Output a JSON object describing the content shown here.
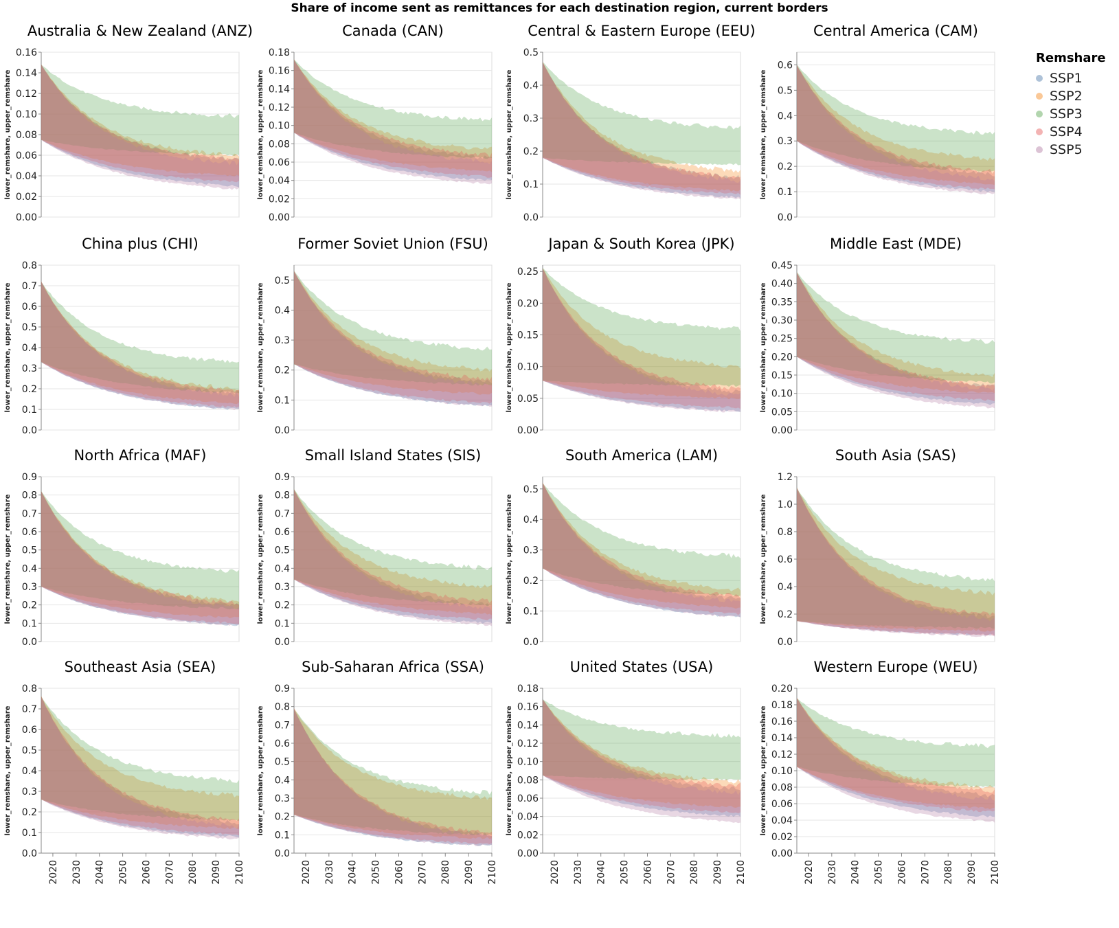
{
  "title": "Share of income sent as remittances for each destination region, current borders",
  "legend": {
    "title": "Remshare",
    "items": [
      {
        "label": "SSP1",
        "color": "#4c78a8"
      },
      {
        "label": "SSP2",
        "color": "#f58518"
      },
      {
        "label": "SSP3",
        "color": "#54a24b"
      },
      {
        "label": "SSP4",
        "color": "#e45756"
      },
      {
        "label": "SSP5",
        "color": "#b279a2"
      }
    ]
  },
  "chart_data": {
    "type": "area",
    "subtype": "small-multiples band (lower_remshare to upper_remshare) per scenario",
    "ylabel": "lower_remshare, upper_remshare",
    "x_range": [
      2015,
      2100
    ],
    "x_ticks": [
      "2020",
      "2030",
      "2040",
      "2050",
      "2060",
      "2070",
      "2080",
      "2090",
      "2100"
    ],
    "series_names": [
      "SSP1",
      "SSP2",
      "SSP3",
      "SSP4",
      "SSP5"
    ],
    "panels": [
      {
        "title": "Australia & New Zealand (ANZ)",
        "ymax": 0.16,
        "ticks": [
          "0.00",
          "0.02",
          "0.04",
          "0.06",
          "0.08",
          "0.10",
          "0.12",
          "0.14",
          "0.16"
        ],
        "start_upper": 0.148,
        "start_lower": 0.075,
        "end_upper": {
          "SSP1": 0.056,
          "SSP2": 0.06,
          "SSP3": 0.098,
          "SSP4": 0.056,
          "SSP5": 0.052
        },
        "end_lower": {
          "SSP1": 0.03,
          "SSP2": 0.04,
          "SSP3": 0.06,
          "SSP4": 0.034,
          "SSP5": 0.027
        }
      },
      {
        "title": "Canada (CAN)",
        "ymax": 0.18,
        "ticks": [
          "0.00",
          "0.02",
          "0.04",
          "0.06",
          "0.08",
          "0.10",
          "0.12",
          "0.14",
          "0.16",
          "0.18"
        ],
        "start_upper": 0.172,
        "start_lower": 0.092,
        "end_upper": {
          "SSP1": 0.065,
          "SSP2": 0.074,
          "SSP3": 0.106,
          "SSP4": 0.068,
          "SSP5": 0.06
        },
        "end_lower": {
          "SSP1": 0.04,
          "SSP2": 0.05,
          "SSP3": 0.064,
          "SSP4": 0.044,
          "SSP5": 0.036
        }
      },
      {
        "title": "Central & Eastern Europe (EEU)",
        "ymax": 0.5,
        "ticks": [
          "0.0",
          "0.1",
          "0.2",
          "0.3",
          "0.4",
          "0.5"
        ],
        "start_upper": 0.47,
        "start_lower": 0.18,
        "end_upper": {
          "SSP1": 0.12,
          "SSP2": 0.14,
          "SSP3": 0.27,
          "SSP4": 0.12,
          "SSP5": 0.11
        },
        "end_lower": {
          "SSP1": 0.06,
          "SSP2": 0.08,
          "SSP3": 0.16,
          "SSP4": 0.07,
          "SSP5": 0.055
        }
      },
      {
        "title": "Central America (CAM)",
        "ymax": 0.65,
        "ticks": [
          "0.0",
          "0.1",
          "0.2",
          "0.3",
          "0.4",
          "0.5",
          "0.6"
        ],
        "start_upper": 0.6,
        "start_lower": 0.3,
        "end_upper": {
          "SSP1": 0.17,
          "SSP2": 0.23,
          "SSP3": 0.33,
          "SSP4": 0.18,
          "SSP5": 0.15
        },
        "end_lower": {
          "SSP1": 0.1,
          "SSP2": 0.13,
          "SSP3": 0.18,
          "SSP4": 0.11,
          "SSP5": 0.09
        }
      },
      {
        "title": "China plus (CHI)",
        "ymax": 0.8,
        "ticks": [
          "0.0",
          "0.1",
          "0.2",
          "0.3",
          "0.4",
          "0.5",
          "0.6",
          "0.7",
          "0.8"
        ],
        "start_upper": 0.72,
        "start_lower": 0.33,
        "end_upper": {
          "SSP1": 0.18,
          "SSP2": 0.2,
          "SSP3": 0.33,
          "SSP4": 0.19,
          "SSP5": 0.17
        },
        "end_lower": {
          "SSP1": 0.1,
          "SSP2": 0.13,
          "SSP3": 0.18,
          "SSP4": 0.11,
          "SSP5": 0.1
        }
      },
      {
        "title": "Former Soviet Union (FSU)",
        "ymax": 0.55,
        "ticks": [
          "0.0",
          "0.1",
          "0.2",
          "0.3",
          "0.4",
          "0.5"
        ],
        "start_upper": 0.53,
        "start_lower": 0.22,
        "end_upper": {
          "SSP1": 0.16,
          "SSP2": 0.2,
          "SSP3": 0.27,
          "SSP4": 0.17,
          "SSP5": 0.15
        },
        "end_lower": {
          "SSP1": 0.08,
          "SSP2": 0.12,
          "SSP3": 0.15,
          "SSP4": 0.09,
          "SSP5": 0.08
        }
      },
      {
        "title": "Japan & South Korea (JPK)",
        "ymax": 0.26,
        "ticks": [
          "0.00",
          "0.05",
          "0.10",
          "0.15",
          "0.20",
          "0.25"
        ],
        "start_upper": 0.255,
        "start_lower": 0.078,
        "end_upper": {
          "SSP1": 0.06,
          "SSP2": 0.1,
          "SSP3": 0.16,
          "SSP4": 0.065,
          "SSP5": 0.055
        },
        "end_lower": {
          "SSP1": 0.03,
          "SSP2": 0.05,
          "SSP3": 0.07,
          "SSP4": 0.035,
          "SSP5": 0.028
        }
      },
      {
        "title": "Middle East (MDE)",
        "ymax": 0.45,
        "ticks": [
          "0.00",
          "0.05",
          "0.10",
          "0.15",
          "0.20",
          "0.25",
          "0.30",
          "0.35",
          "0.40",
          "0.45"
        ],
        "start_upper": 0.43,
        "start_lower": 0.2,
        "end_upper": {
          "SSP1": 0.12,
          "SSP2": 0.15,
          "SSP3": 0.24,
          "SSP4": 0.12,
          "SSP5": 0.11
        },
        "end_lower": {
          "SSP1": 0.07,
          "SSP2": 0.1,
          "SSP3": 0.13,
          "SSP4": 0.08,
          "SSP5": 0.06
        }
      },
      {
        "title": "North Africa (MAF)",
        "ymax": 0.9,
        "ticks": [
          "0.0",
          "0.1",
          "0.2",
          "0.3",
          "0.4",
          "0.5",
          "0.6",
          "0.7",
          "0.8",
          "0.9"
        ],
        "start_upper": 0.82,
        "start_lower": 0.3,
        "end_upper": {
          "SSP1": 0.2,
          "SSP2": 0.22,
          "SSP3": 0.38,
          "SSP4": 0.21,
          "SSP5": 0.19
        },
        "end_lower": {
          "SSP1": 0.09,
          "SSP2": 0.13,
          "SSP3": 0.18,
          "SSP4": 0.1,
          "SSP5": 0.09
        }
      },
      {
        "title": "Small Island States (SIS)",
        "ymax": 0.9,
        "ticks": [
          "0.0",
          "0.1",
          "0.2",
          "0.3",
          "0.4",
          "0.5",
          "0.6",
          "0.7",
          "0.8",
          "0.9"
        ],
        "start_upper": 0.83,
        "start_lower": 0.34,
        "end_upper": {
          "SSP1": 0.2,
          "SSP2": 0.3,
          "SSP3": 0.4,
          "SSP4": 0.22,
          "SSP5": 0.18
        },
        "end_lower": {
          "SSP1": 0.1,
          "SSP2": 0.15,
          "SSP3": 0.2,
          "SSP4": 0.12,
          "SSP5": 0.09
        }
      },
      {
        "title": "South America (LAM)",
        "ymax": 0.54,
        "ticks": [
          "0.0",
          "0.1",
          "0.2",
          "0.3",
          "0.4",
          "0.5"
        ],
        "start_upper": 0.52,
        "start_lower": 0.24,
        "end_upper": {
          "SSP1": 0.14,
          "SSP2": 0.17,
          "SSP3": 0.28,
          "SSP4": 0.15,
          "SSP5": 0.13
        },
        "end_lower": {
          "SSP1": 0.08,
          "SSP2": 0.11,
          "SSP3": 0.15,
          "SSP4": 0.09,
          "SSP5": 0.08
        }
      },
      {
        "title": "South Asia (SAS)",
        "ymax": 1.2,
        "ticks": [
          "0.0",
          "0.2",
          "0.4",
          "0.6",
          "0.8",
          "1.0",
          "1.2"
        ],
        "start_upper": 1.12,
        "start_lower": 0.15,
        "end_upper": {
          "SSP1": 0.18,
          "SSP2": 0.35,
          "SSP3": 0.45,
          "SSP4": 0.2,
          "SSP5": 0.16
        },
        "end_lower": {
          "SSP1": 0.05,
          "SSP2": 0.08,
          "SSP3": 0.1,
          "SSP4": 0.05,
          "SSP5": 0.04
        }
      },
      {
        "title": "Southeast Asia (SEA)",
        "ymax": 0.8,
        "ticks": [
          "0.0",
          "0.1",
          "0.2",
          "0.3",
          "0.4",
          "0.5",
          "0.6",
          "0.7",
          "0.8"
        ],
        "start_upper": 0.76,
        "start_lower": 0.26,
        "end_upper": {
          "SSP1": 0.15,
          "SSP2": 0.28,
          "SSP3": 0.35,
          "SSP4": 0.16,
          "SSP5": 0.13
        },
        "end_lower": {
          "SSP1": 0.08,
          "SSP2": 0.12,
          "SSP3": 0.16,
          "SSP4": 0.09,
          "SSP5": 0.07
        }
      },
      {
        "title": "Sub-Saharan Africa (SSA)",
        "ymax": 0.9,
        "ticks": [
          "0.0",
          "0.1",
          "0.2",
          "0.3",
          "0.4",
          "0.5",
          "0.6",
          "0.7",
          "0.8",
          "0.9"
        ],
        "start_upper": 0.79,
        "start_lower": 0.21,
        "end_upper": {
          "SSP1": 0.1,
          "SSP2": 0.3,
          "SSP3": 0.33,
          "SSP4": 0.11,
          "SSP5": 0.09
        },
        "end_lower": {
          "SSP1": 0.04,
          "SSP2": 0.08,
          "SSP3": 0.1,
          "SSP4": 0.05,
          "SSP5": 0.04
        }
      },
      {
        "title": "United States (USA)",
        "ymax": 0.18,
        "ticks": [
          "0.00",
          "0.02",
          "0.04",
          "0.06",
          "0.08",
          "0.10",
          "0.12",
          "0.14",
          "0.16",
          "0.18"
        ],
        "start_upper": 0.168,
        "start_lower": 0.085,
        "end_upper": {
          "SSP1": 0.07,
          "SSP2": 0.078,
          "SSP3": 0.128,
          "SSP4": 0.074,
          "SSP5": 0.066
        },
        "end_lower": {
          "SSP1": 0.04,
          "SSP2": 0.05,
          "SSP3": 0.08,
          "SSP4": 0.044,
          "SSP5": 0.034
        }
      },
      {
        "title": "Western Europe (WEU)",
        "ymax": 0.2,
        "ticks": [
          "0.00",
          "0.02",
          "0.04",
          "0.06",
          "0.08",
          "0.10",
          "0.12",
          "0.14",
          "0.16",
          "0.18",
          "0.20"
        ],
        "start_upper": 0.188,
        "start_lower": 0.105,
        "end_upper": {
          "SSP1": 0.07,
          "SSP2": 0.08,
          "SSP3": 0.13,
          "SSP4": 0.076,
          "SSP5": 0.066
        },
        "end_lower": {
          "SSP1": 0.044,
          "SSP2": 0.054,
          "SSP3": 0.08,
          "SSP4": 0.05,
          "SSP5": 0.038
        }
      }
    ]
  }
}
